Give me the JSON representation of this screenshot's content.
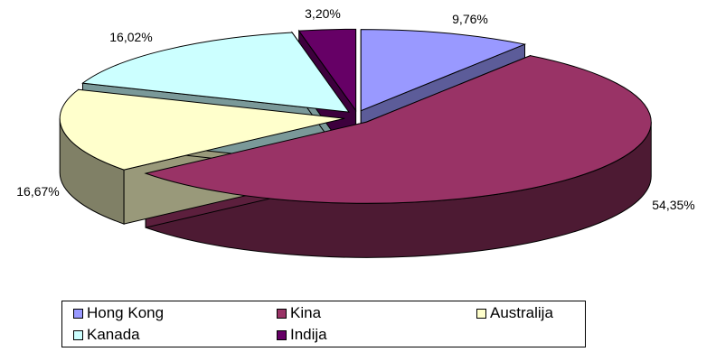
{
  "chart_data": {
    "type": "pie",
    "style": "3d-exploded",
    "categories": [
      "Hong Kong",
      "Kina",
      "Australija",
      "Kanada",
      "Indija"
    ],
    "values": [
      9.76,
      54.35,
      16.67,
      16.02,
      3.2
    ],
    "labels": [
      "9,76%",
      "54,35%",
      "16,67%",
      "16,02%",
      "3,20%"
    ],
    "colors": [
      "#9999FF",
      "#993366",
      "#FFFFCC",
      "#CCFFFF",
      "#660066"
    ],
    "title": "",
    "legend_position": "bottom"
  }
}
